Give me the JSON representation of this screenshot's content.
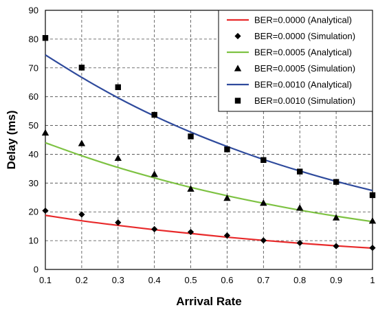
{
  "chart_data": {
    "type": "line",
    "title": "",
    "xlabel": "Arrival Rate",
    "ylabel": "Delay (ms)",
    "xlim": [
      0.1,
      1
    ],
    "ylim": [
      0,
      90
    ],
    "x_ticks": [
      "0.1",
      "0.2",
      "0.3",
      "0.4",
      "0.5",
      "0.6",
      "0.7",
      "0.8",
      "0.9",
      "1"
    ],
    "y_ticks": [
      "0",
      "10",
      "20",
      "30",
      "40",
      "50",
      "60",
      "70",
      "80",
      "90"
    ],
    "grid": "dashed",
    "legend_position": "top-right",
    "x": [
      0.1,
      0.2,
      0.3,
      0.4,
      0.5,
      0.6,
      0.7,
      0.8,
      0.9,
      1.0
    ],
    "series": [
      {
        "name": "BER=0.0000 (Analytical)",
        "kind": "line",
        "color": "#e8292a",
        "values": [
          18.8,
          16.9,
          15.3,
          13.8,
          12.5,
          11.2,
          10.1,
          9.1,
          8.2,
          7.4
        ]
      },
      {
        "name": "BER=0.0000 (Simulation)",
        "kind": "marker",
        "marker": "diamond",
        "color": "#000000",
        "values": [
          20.4,
          19.1,
          16.3,
          14.0,
          13.0,
          11.8,
          10.1,
          9.2,
          8.1,
          7.5
        ]
      },
      {
        "name": "BER=0.0005 (Analytical)",
        "kind": "line",
        "color": "#7dc242",
        "values": [
          44.0,
          39.5,
          35.4,
          31.8,
          28.5,
          25.6,
          23.0,
          20.6,
          18.5,
          16.6
        ]
      },
      {
        "name": "BER=0.0005 (Simulation)",
        "kind": "marker",
        "marker": "triangle",
        "color": "#000000",
        "values": [
          47.5,
          43.8,
          38.7,
          33.1,
          28.0,
          24.8,
          23.1,
          21.4,
          18.0,
          16.9
        ]
      },
      {
        "name": "BER=0.0010 (Analytical)",
        "kind": "line",
        "color": "#2e4a9c",
        "values": [
          74.5,
          66.7,
          59.6,
          53.3,
          47.7,
          42.7,
          38.2,
          34.2,
          30.6,
          27.4
        ]
      },
      {
        "name": "BER=0.0010 (Simulation)",
        "kind": "marker",
        "marker": "square",
        "color": "#000000",
        "values": [
          80.4,
          70.1,
          63.3,
          53.7,
          46.2,
          41.7,
          38.0,
          34.0,
          30.4,
          25.8
        ]
      }
    ]
  }
}
